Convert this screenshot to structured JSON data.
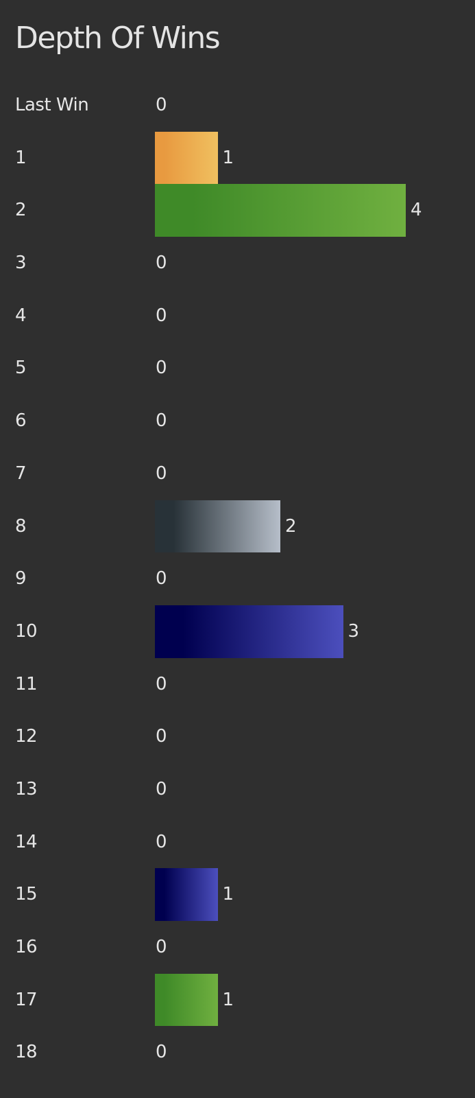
{
  "chart_data": {
    "type": "bar",
    "orientation": "horizontal",
    "title": "Depth Of Wins",
    "categories": [
      "Last Win",
      "1",
      "2",
      "3",
      "4",
      "5",
      "6",
      "7",
      "8",
      "9",
      "10",
      "11",
      "12",
      "13",
      "14",
      "15",
      "16",
      "17",
      "18"
    ],
    "values": [
      0,
      1,
      4,
      0,
      0,
      0,
      0,
      0,
      2,
      0,
      3,
      0,
      0,
      0,
      0,
      1,
      0,
      1,
      0
    ],
    "bar_gradients": {
      "1": [
        "#e89a40",
        "#f0c060"
      ],
      "2": [
        "#3f8a28",
        "#70b040"
      ],
      "8": [
        "#283238",
        "#b6bec9"
      ],
      "10": [
        "#00004f",
        "#4c4fbd"
      ],
      "15": [
        "#00004f",
        "#4c4fbd"
      ],
      "17": [
        "#3f8a28",
        "#70b040"
      ]
    },
    "data_labels": true,
    "grid": false,
    "background": "#2f2f2f"
  }
}
